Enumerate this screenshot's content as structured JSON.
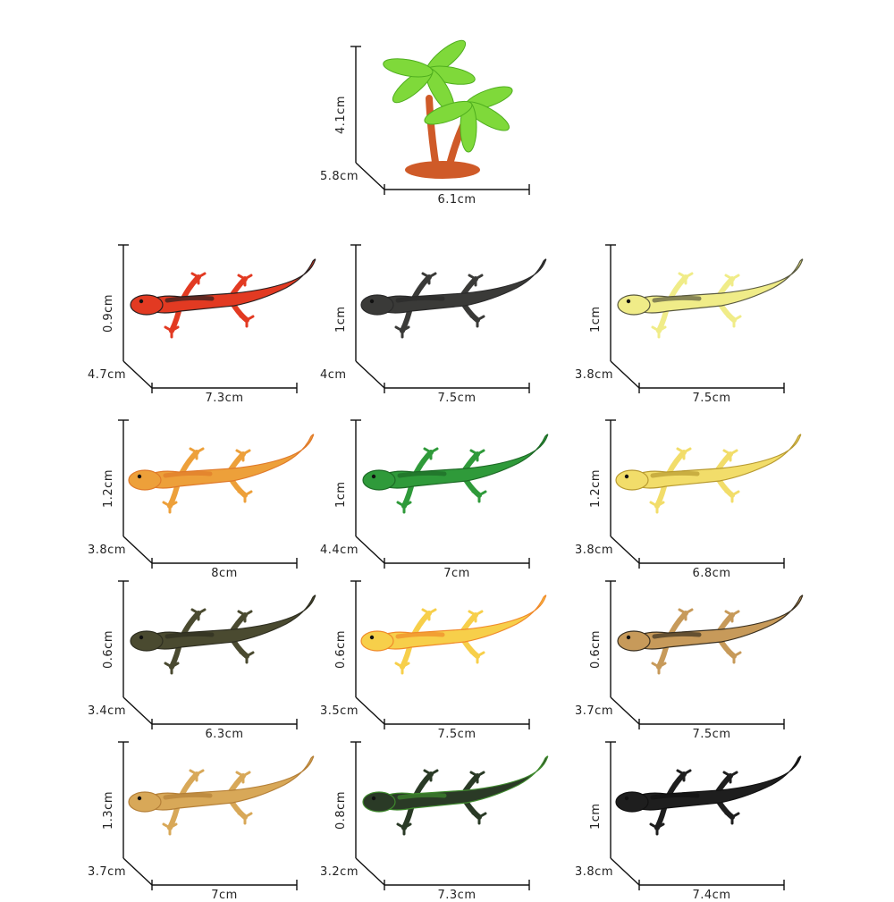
{
  "items": [
    {
      "kind": "tree",
      "height": "4.1cm",
      "depth": "5.8cm",
      "length": "6.1cm",
      "body": "#7fd93a",
      "accent": "#cf5a28"
    },
    {
      "kind": "lizard",
      "height": "0.9cm",
      "depth": "4.7cm",
      "length": "7.3cm",
      "body": "#e23a22",
      "accent": "#2a2020"
    },
    {
      "kind": "lizard",
      "height": "1cm",
      "depth": "4cm",
      "length": "7.5cm",
      "body": "#3a3a38",
      "accent": "#2a2a2a"
    },
    {
      "kind": "lizard",
      "height": "1cm",
      "depth": "3.8cm",
      "length": "7.5cm",
      "body": "#f0ec88",
      "accent": "#5a5a40"
    },
    {
      "kind": "lizard",
      "height": "1.2cm",
      "depth": "3.8cm",
      "length": "8cm",
      "body": "#eda03a",
      "accent": "#e07a2a"
    },
    {
      "kind": "lizard",
      "height": "1cm",
      "depth": "4.4cm",
      "length": "7cm",
      "body": "#2f9a3a",
      "accent": "#1d6a26"
    },
    {
      "kind": "lizard",
      "height": "1.2cm",
      "depth": "3.8cm",
      "length": "6.8cm",
      "body": "#f2dd6a",
      "accent": "#b89a30"
    },
    {
      "kind": "lizard",
      "height": "0.6cm",
      "depth": "3.4cm",
      "length": "6.3cm",
      "body": "#4a4a30",
      "accent": "#2e2e20"
    },
    {
      "kind": "lizard",
      "height": "0.6cm",
      "depth": "3.5cm",
      "length": "7.5cm",
      "body": "#f7cf4a",
      "accent": "#f08a2a"
    },
    {
      "kind": "lizard",
      "height": "0.6cm",
      "depth": "3.7cm",
      "length": "7.5cm",
      "body": "#c79a5a",
      "accent": "#3a3020"
    },
    {
      "kind": "lizard",
      "height": "1.3cm",
      "depth": "3.7cm",
      "length": "7cm",
      "body": "#d8a858",
      "accent": "#b58038"
    },
    {
      "kind": "lizard",
      "height": "0.8cm",
      "depth": "3.2cm",
      "length": "7.3cm",
      "body": "#2a3a26",
      "accent": "#3f8a2e"
    },
    {
      "kind": "lizard",
      "height": "1cm",
      "depth": "3.8cm",
      "length": "7.4cm",
      "body": "#1e1e1e",
      "accent": "#111111"
    }
  ]
}
